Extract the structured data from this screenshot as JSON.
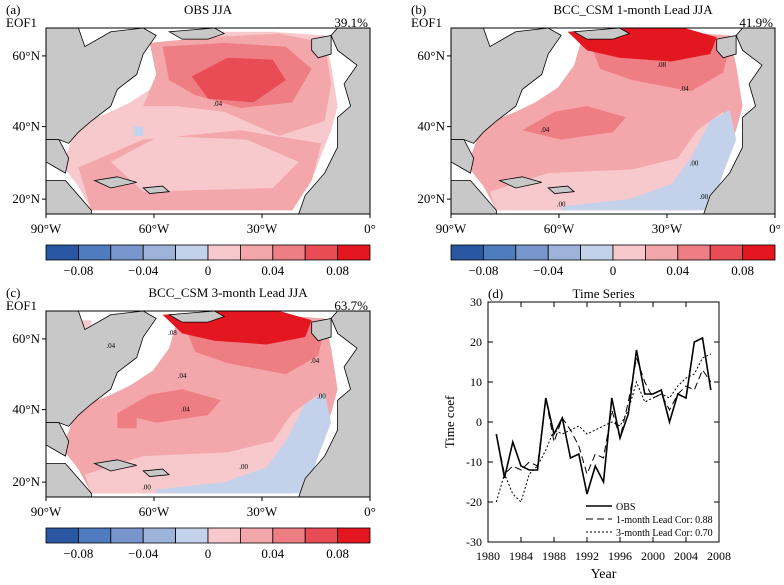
{
  "palette": {
    "land": "#c8c8c8",
    "neg": [
      "#2a57a2",
      "#4f7cbf",
      "#7896cb",
      "#9db3da",
      "#c4d1ea"
    ],
    "pos": [
      "#f7c9cc",
      "#f3a7ab",
      "#ef7d84",
      "#ea4c55",
      "#e4161f"
    ]
  },
  "chart_data": [
    {
      "type": "heatmap",
      "panel_label": "(a)",
      "title": "OBS JJA",
      "mode_label": "EOF1",
      "variance": "39.1%",
      "x_tick_labels": [
        "90°W",
        "60°W",
        "30°W",
        "0°"
      ],
      "y_tick_labels": [
        "60°N",
        "40°N",
        "20°N"
      ],
      "colorbar_tick_labels": [
        "−0.08",
        "−0.04",
        "0",
        "0.04",
        "0.08"
      ],
      "contour_labels": [
        ".04"
      ],
      "levels": [
        -0.1,
        -0.08,
        -0.06,
        -0.04,
        -0.02,
        0,
        0.02,
        0.04,
        0.06,
        0.08,
        0.1
      ]
    },
    {
      "type": "heatmap",
      "panel_label": "(b)",
      "title": "BCC_CSM 1-month Lead JJA",
      "mode_label": "EOF1",
      "variance": "41.9%",
      "x_tick_labels": [
        "90°W",
        "60°W",
        "30°W",
        "0°"
      ],
      "y_tick_labels": [
        "60°N",
        "40°N",
        "20°N"
      ],
      "colorbar_tick_labels": [
        "−0.08",
        "−0.04",
        "0",
        "0.04",
        "0.08"
      ],
      "contour_labels": [
        ".08",
        ".04",
        ".04",
        ".00",
        ".00",
        ".00"
      ],
      "levels": [
        -0.1,
        -0.08,
        -0.06,
        -0.04,
        -0.02,
        0,
        0.02,
        0.04,
        0.06,
        0.08,
        0.1
      ]
    },
    {
      "type": "heatmap",
      "panel_label": "(c)",
      "title": "BCC_CSM 3-month Lead JJA",
      "mode_label": "EOF1",
      "variance": "63.7%",
      "x_tick_labels": [
        "90°W",
        "60°W",
        "30°W",
        "0°"
      ],
      "y_tick_labels": [
        "60°N",
        "40°N",
        "20°N"
      ],
      "colorbar_tick_labels": [
        "−0.08",
        "−0.04",
        "0",
        "0.04",
        "0.08"
      ],
      "contour_labels": [
        ".08",
        ".04",
        ".04",
        ".04",
        ".04",
        ".00",
        ".00",
        ".00"
      ],
      "levels": [
        -0.1,
        -0.08,
        -0.06,
        -0.04,
        -0.02,
        0,
        0.02,
        0.04,
        0.06,
        0.08,
        0.1
      ]
    },
    {
      "type": "line",
      "panel_label": "(d)",
      "title": "Time Series",
      "xlabel": "Year",
      "ylabel": "Time coef",
      "xlim": [
        1980,
        2008
      ],
      "ylim": [
        -30,
        30
      ],
      "x_ticks": [
        1980,
        1984,
        1988,
        1992,
        1996,
        2000,
        2004,
        2008
      ],
      "y_ticks": [
        -30,
        -20,
        -10,
        0,
        10,
        20,
        30
      ],
      "x": [
        1981,
        1982,
        1983,
        1984,
        1985,
        1986,
        1987,
        1988,
        1989,
        1990,
        1991,
        1992,
        1993,
        1994,
        1995,
        1996,
        1997,
        1998,
        1999,
        2000,
        2001,
        2002,
        2003,
        2004,
        2005,
        2006,
        2007
      ],
      "series": [
        {
          "name": "OBS",
          "style": "solid",
          "values": [
            -3,
            -14,
            -5,
            -11,
            -12,
            -12,
            6,
            -3,
            1,
            -9,
            -8,
            -18,
            -11,
            -15,
            6,
            -4,
            2,
            18,
            7,
            7,
            8,
            0,
            7,
            6,
            20,
            21,
            8
          ]
        },
        {
          "name": "1-month Lead Cor: 0.88",
          "style": "dashed",
          "values": [
            -3,
            -13,
            -11,
            -12,
            -10,
            -11,
            6,
            -5,
            1,
            -2,
            -6,
            -13,
            -8,
            -9,
            3,
            -4,
            5,
            16,
            10,
            6,
            7,
            3,
            7,
            9,
            8,
            13,
            10
          ]
        },
        {
          "name": "3-month Lead Cor: 0.70",
          "style": "dotted",
          "values": [
            -20,
            -13,
            -18,
            -20,
            -13,
            -11,
            -7,
            -2,
            -3,
            -2,
            -1,
            -3,
            -2,
            -1,
            0,
            -1,
            3,
            10,
            5,
            6,
            7,
            6,
            9,
            11,
            12,
            16,
            17
          ]
        }
      ]
    }
  ]
}
